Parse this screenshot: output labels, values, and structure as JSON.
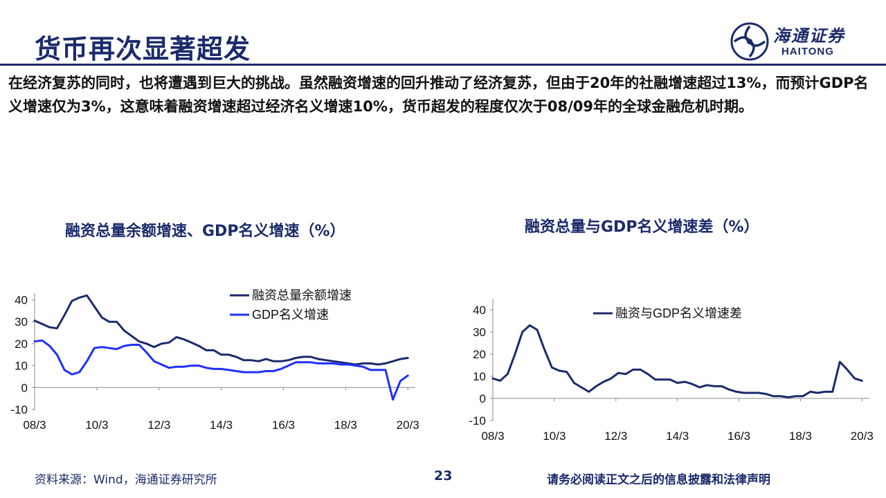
{
  "header": {
    "title": "货币再次显著超发",
    "logo_cn": "海通证券",
    "logo_en": "HAITONG"
  },
  "intro": "在经济复苏的同时，也将遭遇到巨大的挑战。虽然融资增速的回升推动了经济复苏，但由于20年的社融增速超过13%，而预计GDP名义增速仅为3%，这意味着融资增速超过经济名义增速10%，货币超发的程度仅次于08/09年的全球金融危机时期。",
  "footer": {
    "source": "资料来源：Wind，海通证券研究所",
    "page": "23",
    "disclaimer": "请务必阅读正文之后的信息披露和法律声明"
  },
  "colors": {
    "navy": "#1a2a6b",
    "blue": "#1f2fff",
    "axis": "#888888"
  },
  "chart_data": [
    {
      "type": "line",
      "title": "融资总量余额增速、GDP名义增速（%）",
      "xlabel": "",
      "ylabel": "",
      "x_ticks": [
        "08/3",
        "10/3",
        "12/3",
        "14/3",
        "16/3",
        "18/3",
        "20/3"
      ],
      "y_ticks": [
        -10,
        0,
        10,
        20,
        30,
        40
      ],
      "ylim": [
        -10,
        43
      ],
      "xlim": [
        0,
        51
      ],
      "grid": false,
      "legend": "top-right",
      "series": [
        {
          "name": "融资总量余额增速",
          "color": "#1a2a6b",
          "x": [
            0,
            1,
            2,
            3,
            4,
            5,
            6,
            7,
            8,
            9,
            10,
            11,
            12,
            13,
            14,
            15,
            16,
            17,
            18,
            19,
            20,
            21,
            22,
            23,
            24,
            25,
            26,
            27,
            28,
            29,
            30,
            31,
            32,
            33,
            34,
            35,
            36,
            37,
            38,
            39,
            40,
            41,
            42,
            43,
            44,
            45,
            46,
            47,
            48,
            49,
            50
          ],
          "values": [
            30.5,
            29,
            27.5,
            27,
            33,
            39.5,
            41,
            42,
            37,
            32,
            30,
            30,
            26,
            23.5,
            21,
            20,
            18.5,
            20,
            20.5,
            23,
            22,
            20.5,
            19,
            17,
            17,
            15,
            15,
            14,
            12.5,
            12.5,
            12,
            13,
            12,
            12,
            12.5,
            13.5,
            14,
            14,
            13,
            12.5,
            12,
            11.5,
            11,
            10.5,
            11,
            11,
            10.5,
            11,
            12,
            13,
            13.5
          ]
        },
        {
          "name": "GDP名义增速",
          "color": "#1f2fff",
          "x": [
            0,
            1,
            2,
            3,
            4,
            5,
            6,
            7,
            8,
            9,
            10,
            11,
            12,
            13,
            14,
            15,
            16,
            17,
            18,
            19,
            20,
            21,
            22,
            23,
            24,
            25,
            26,
            27,
            28,
            29,
            30,
            31,
            32,
            33,
            34,
            35,
            36,
            37,
            38,
            39,
            40,
            41,
            42,
            43,
            44,
            45,
            46,
            47,
            48,
            49,
            50
          ],
          "values": [
            21,
            21.5,
            19,
            15,
            8,
            6,
            7,
            12,
            18,
            18.5,
            18,
            17.5,
            19,
            19.5,
            19.5,
            16,
            12,
            10.5,
            9,
            9.5,
            9.5,
            10,
            10,
            9,
            8.5,
            8.5,
            8,
            7.5,
            7,
            7,
            7,
            7.5,
            7.5,
            8.5,
            10,
            11.5,
            11.5,
            11.5,
            11,
            11,
            11,
            10.5,
            10.5,
            10,
            9.5,
            8,
            8,
            8,
            -5.5,
            3,
            5.5
          ]
        }
      ]
    },
    {
      "type": "line",
      "title": "融资总量与GDP名义增速差（%）",
      "xlabel": "",
      "ylabel": "",
      "x_ticks": [
        "08/3",
        "10/3",
        "12/3",
        "14/3",
        "16/3",
        "18/3",
        "20/3"
      ],
      "y_ticks": [
        -10,
        0,
        10,
        20,
        30,
        40
      ],
      "ylim": [
        -10,
        45
      ],
      "xlim": [
        0,
        51
      ],
      "grid": false,
      "legend": "top-right",
      "series": [
        {
          "name": "融资与GDP名义增速差",
          "color": "#1a2a6b",
          "x": [
            0,
            1,
            2,
            3,
            4,
            5,
            6,
            7,
            8,
            9,
            10,
            11,
            12,
            13,
            14,
            15,
            16,
            17,
            18,
            19,
            20,
            21,
            22,
            23,
            24,
            25,
            26,
            27,
            28,
            29,
            30,
            31,
            32,
            33,
            34,
            35,
            36,
            37,
            38,
            39,
            40,
            41,
            42,
            43,
            44,
            45,
            46,
            47,
            48,
            49,
            50
          ],
          "values": [
            9,
            8,
            11,
            20,
            30,
            33,
            31,
            22,
            14,
            12.5,
            12,
            7,
            5,
            3,
            5.5,
            7.5,
            9,
            11.5,
            11,
            13,
            13,
            11,
            8.5,
            8.5,
            8.5,
            7,
            7.5,
            6.5,
            5,
            6,
            5.5,
            5.5,
            4,
            3,
            2.5,
            2.5,
            2.5,
            2,
            1,
            1,
            0.5,
            1,
            1,
            3,
            2.5,
            3,
            3,
            16.5,
            13,
            9,
            8
          ]
        }
      ]
    }
  ]
}
